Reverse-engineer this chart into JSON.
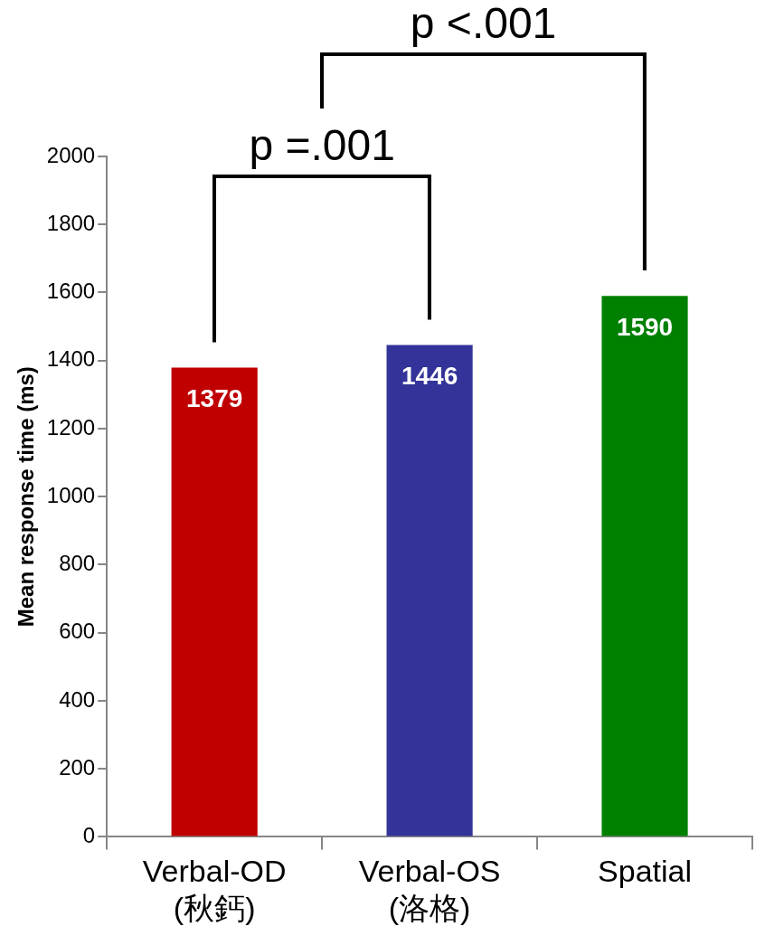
{
  "chart_data": {
    "type": "bar",
    "ylabel": "Mean response time (ms)",
    "categories": [
      "Verbal-OD\n(秋鈣)",
      "Verbal-OS\n(洛格)",
      "Spatial"
    ],
    "values": [
      1379,
      1446,
      1590
    ],
    "colors": [
      "#c00000",
      "#333399",
      "#008000"
    ],
    "ylim": [
      0,
      2000
    ],
    "yticks": [
      0,
      200,
      400,
      600,
      800,
      1000,
      1200,
      1400,
      1600,
      1800,
      2000
    ],
    "grid": false,
    "legend": false,
    "data_labels": true,
    "annotations": [
      "p =.001",
      "p <.001"
    ]
  }
}
